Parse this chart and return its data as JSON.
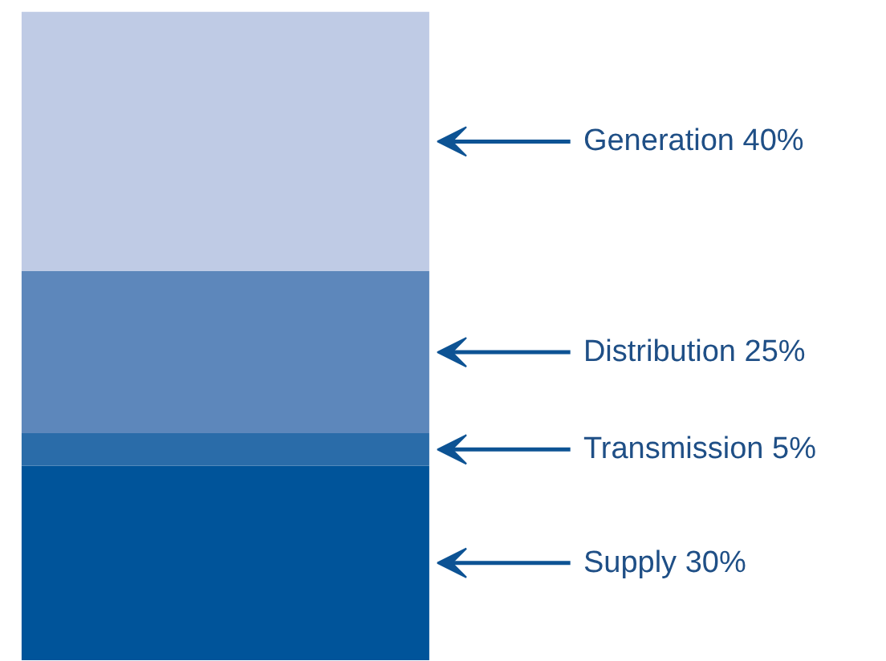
{
  "chart_data": {
    "type": "bar",
    "stacked": true,
    "categories": [
      null
    ],
    "series": [
      {
        "color": "#00549a",
        "values": [
          30
        ],
        "value_labels": [
          "Supply 30%"
        ]
      },
      {
        "color": "#2a6ca9",
        "values": [
          5
        ],
        "value_labels": [
          "Transmission 5%"
        ]
      },
      {
        "color": "#5d87bb",
        "values": [
          25
        ],
        "value_labels": [
          "Distribution 25%"
        ]
      },
      {
        "color": "#bfcbe5",
        "values": [
          40
        ],
        "value_labels": [
          "Generation 40%"
        ]
      }
    ]
  }
}
